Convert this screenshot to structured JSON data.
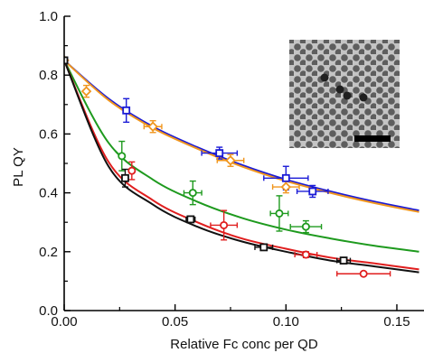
{
  "chart_data": {
    "type": "scatter",
    "xlabel": "Relative Fc conc per QD",
    "ylabel": "PL QY",
    "xlim": [
      0.0,
      0.16
    ],
    "ylim": [
      0.0,
      1.0
    ],
    "x_ticks": [
      "0.00",
      "0.05",
      "0.10",
      "0.15"
    ],
    "y_ticks": [
      "0.0",
      "0.2",
      "0.4",
      "0.6",
      "0.8",
      "1.0"
    ],
    "x_tick_values": [
      0.0,
      0.05,
      0.1,
      0.15
    ],
    "y_tick_values": [
      0.0,
      0.2,
      0.4,
      0.6,
      0.8,
      1.0
    ],
    "grid": false,
    "inset": "TEM micrograph of nanocrystals with black scale bar (top-right)",
    "series": [
      {
        "color": "#1a1ad6",
        "marker": "square",
        "points": [
          {
            "x": 0.0,
            "y": 0.85
          },
          {
            "x": 0.028,
            "y": 0.68,
            "xerr": 0.0,
            "yerr": 0.04
          },
          {
            "x": 0.07,
            "y": 0.535,
            "xerr": 0.008,
            "yerr": 0.02
          },
          {
            "x": 0.1,
            "y": 0.45,
            "xerr": 0.01,
            "yerr": 0.04
          },
          {
            "x": 0.112,
            "y": 0.405,
            "xerr": 0.007,
            "yerr": 0.02
          }
        ],
        "fit": [
          [
            0.0,
            0.85
          ],
          [
            0.02,
            0.72
          ],
          [
            0.04,
            0.625
          ],
          [
            0.06,
            0.555
          ],
          [
            0.08,
            0.495
          ],
          [
            0.1,
            0.445
          ],
          [
            0.12,
            0.405
          ],
          [
            0.14,
            0.37
          ],
          [
            0.16,
            0.34
          ]
        ]
      },
      {
        "color": "#f0961e",
        "marker": "diamond",
        "points": [
          {
            "x": 0.0,
            "y": 0.85
          },
          {
            "x": 0.01,
            "y": 0.745,
            "xerr": 0.0,
            "yerr": 0.02
          },
          {
            "x": 0.04,
            "y": 0.625,
            "xerr": 0.004,
            "yerr": 0.02
          },
          {
            "x": 0.075,
            "y": 0.51,
            "xerr": 0.006,
            "yerr": 0.02
          },
          {
            "x": 0.1,
            "y": 0.42,
            "xerr": 0.006,
            "yerr": 0.02
          }
        ],
        "fit": [
          [
            0.0,
            0.85
          ],
          [
            0.02,
            0.715
          ],
          [
            0.04,
            0.62
          ],
          [
            0.06,
            0.55
          ],
          [
            0.08,
            0.49
          ],
          [
            0.1,
            0.44
          ],
          [
            0.12,
            0.4
          ],
          [
            0.14,
            0.365
          ],
          [
            0.16,
            0.335
          ]
        ]
      },
      {
        "color": "#1e9a1e",
        "marker": "circle",
        "points": [
          {
            "x": 0.0,
            "y": 0.85
          },
          {
            "x": 0.026,
            "y": 0.525,
            "xerr": 0.0,
            "yerr": 0.05
          },
          {
            "x": 0.058,
            "y": 0.4,
            "xerr": 0.004,
            "yerr": 0.04
          },
          {
            "x": 0.097,
            "y": 0.33,
            "xerr": 0.004,
            "yerr": 0.06
          },
          {
            "x": 0.109,
            "y": 0.285,
            "xerr": 0.007,
            "yerr": 0.02
          }
        ],
        "fit": [
          [
            0.0,
            0.85
          ],
          [
            0.02,
            0.57
          ],
          [
            0.04,
            0.445
          ],
          [
            0.06,
            0.37
          ],
          [
            0.08,
            0.315
          ],
          [
            0.1,
            0.275
          ],
          [
            0.12,
            0.245
          ],
          [
            0.14,
            0.22
          ],
          [
            0.16,
            0.2
          ]
        ]
      },
      {
        "color": "#e01e1e",
        "marker": "circle",
        "points": [
          {
            "x": 0.0,
            "y": 0.85
          },
          {
            "x": 0.0305,
            "y": 0.475,
            "xerr": 0.0,
            "yerr": 0.03
          },
          {
            "x": 0.072,
            "y": 0.29,
            "xerr": 0.006,
            "yerr": 0.05
          },
          {
            "x": 0.109,
            "y": 0.19,
            "xerr": 0.005,
            "yerr": 0.01
          },
          {
            "x": 0.135,
            "y": 0.125,
            "xerr": 0.012,
            "yerr": 0.005
          }
        ],
        "fit": [
          [
            0.0,
            0.85
          ],
          [
            0.02,
            0.505
          ],
          [
            0.04,
            0.375
          ],
          [
            0.06,
            0.3
          ],
          [
            0.08,
            0.245
          ],
          [
            0.1,
            0.21
          ],
          [
            0.12,
            0.18
          ],
          [
            0.14,
            0.16
          ],
          [
            0.16,
            0.14
          ]
        ]
      },
      {
        "color": "#111111",
        "marker": "square",
        "points": [
          {
            "x": 0.0,
            "y": 0.85
          },
          {
            "x": 0.0275,
            "y": 0.45,
            "xerr": 0.0,
            "yerr": 0.03
          },
          {
            "x": 0.057,
            "y": 0.31,
            "xerr": 0.002,
            "yerr": 0.01
          },
          {
            "x": 0.09,
            "y": 0.215,
            "xerr": 0.004,
            "yerr": 0.005
          },
          {
            "x": 0.126,
            "y": 0.17,
            "xerr": 0.003,
            "yerr": 0.005
          }
        ],
        "fit": [
          [
            0.0,
            0.85
          ],
          [
            0.02,
            0.49
          ],
          [
            0.04,
            0.36
          ],
          [
            0.06,
            0.285
          ],
          [
            0.08,
            0.235
          ],
          [
            0.1,
            0.2
          ],
          [
            0.12,
            0.17
          ],
          [
            0.14,
            0.15
          ],
          [
            0.16,
            0.13
          ]
        ]
      }
    ]
  }
}
